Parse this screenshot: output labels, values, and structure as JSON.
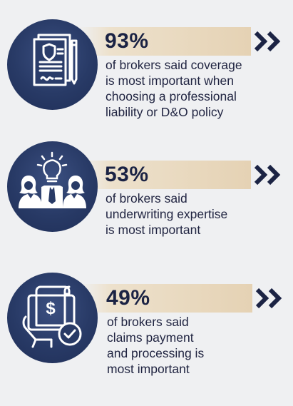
{
  "stats": [
    {
      "percent": "93%",
      "lines": [
        "of brokers said coverage",
        "is most important when",
        "choosing a professional",
        "liability or D&O policy"
      ],
      "icon": "policy-document-icon"
    },
    {
      "percent": "53%",
      "lines": [
        "of brokers said",
        "underwriting expertise",
        "is most important"
      ],
      "icon": "team-lightbulb-icon"
    },
    {
      "percent": "49%",
      "lines": [
        "of brokers said",
        "claims payment",
        "and processing is",
        "most important"
      ],
      "icon": "claims-payment-icon"
    }
  ],
  "colors": {
    "navy": "#283a66",
    "band": "#e5d2b4",
    "chevron": "#1b2344",
    "text": "#1f2340"
  }
}
